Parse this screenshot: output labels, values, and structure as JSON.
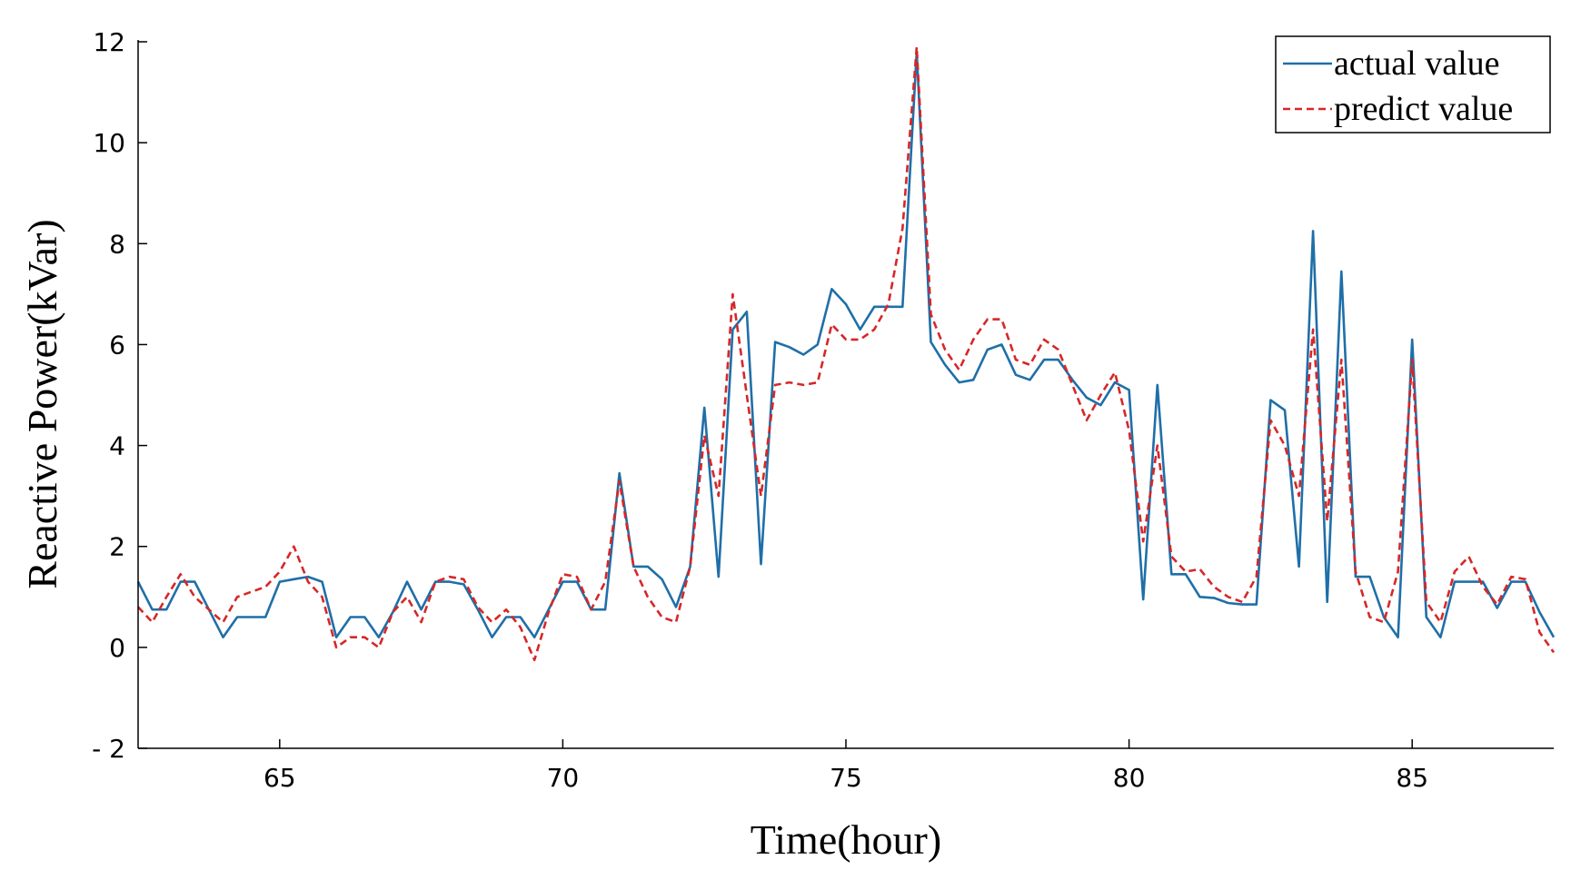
{
  "chart_data": {
    "type": "line",
    "xlabel": "Time(hour)",
    "ylabel": "Reactive Power(kVar)",
    "xlim": [
      62.5,
      87.5
    ],
    "ylim": [
      -2,
      12
    ],
    "xticks": [
      65,
      70,
      75,
      80,
      85
    ],
    "yticks": [
      -2,
      0,
      2,
      4,
      6,
      8,
      10,
      12
    ],
    "ytick_labels": [
      "- 2",
      "0",
      "2",
      "4",
      "6",
      "8",
      "10",
      "12"
    ],
    "legend_position": "top-right",
    "grid": false,
    "series": [
      {
        "name": "actual value",
        "color": "#1f6fa8",
        "style": "solid",
        "x": [
          62.5,
          62.75,
          63.0,
          63.25,
          63.5,
          63.75,
          64.0,
          64.25,
          64.5,
          64.75,
          65.0,
          65.25,
          65.5,
          65.75,
          66.0,
          66.25,
          66.5,
          66.75,
          67.0,
          67.25,
          67.5,
          67.75,
          68.0,
          68.25,
          68.5,
          68.75,
          69.0,
          69.25,
          69.5,
          69.75,
          70.0,
          70.25,
          70.5,
          70.75,
          71.0,
          71.25,
          71.5,
          71.75,
          72.0,
          72.25,
          72.5,
          72.75,
          73.0,
          73.25,
          73.5,
          73.75,
          74.0,
          74.25,
          74.5,
          74.75,
          75.0,
          75.25,
          75.5,
          75.75,
          76.0,
          76.25,
          76.5,
          76.75,
          77.0,
          77.25,
          77.5,
          77.75,
          78.0,
          78.25,
          78.5,
          78.75,
          79.0,
          79.25,
          79.5,
          79.75,
          80.0,
          80.25,
          80.5,
          80.75,
          81.0,
          81.25,
          81.5,
          81.75,
          82.0,
          82.25,
          82.5,
          82.75,
          83.0,
          83.25,
          83.5,
          83.75,
          84.0,
          84.25,
          84.5,
          84.75,
          85.0,
          85.25,
          85.5,
          85.75,
          86.0,
          86.25,
          86.5,
          86.75,
          87.0,
          87.25,
          87.5
        ],
        "y": [
          1.3,
          0.75,
          0.75,
          1.3,
          1.3,
          0.75,
          0.2,
          0.6,
          0.6,
          0.6,
          1.3,
          1.35,
          1.4,
          1.3,
          0.2,
          0.6,
          0.6,
          0.2,
          0.7,
          1.3,
          0.75,
          1.3,
          1.3,
          1.25,
          0.75,
          0.2,
          0.6,
          0.6,
          0.2,
          0.75,
          1.3,
          1.3,
          0.75,
          0.75,
          3.45,
          1.6,
          1.6,
          1.35,
          0.8,
          1.6,
          4.75,
          1.4,
          6.3,
          6.65,
          1.65,
          6.05,
          5.95,
          5.8,
          6.0,
          7.1,
          6.8,
          6.3,
          6.75,
          6.75,
          6.75,
          11.8,
          6.05,
          5.6,
          5.25,
          5.3,
          5.9,
          6.0,
          5.4,
          5.3,
          5.7,
          5.7,
          5.3,
          4.95,
          4.8,
          5.25,
          5.1,
          0.95,
          5.2,
          1.45,
          1.45,
          1.0,
          0.98,
          0.88,
          0.85,
          0.85,
          4.9,
          4.7,
          1.6,
          8.25,
          0.9,
          7.45,
          1.4,
          1.4,
          0.6,
          0.2,
          6.1,
          0.6,
          0.2,
          1.3,
          1.3,
          1.3,
          0.78,
          1.3,
          1.3,
          0.7,
          0.2
        ]
      },
      {
        "name": "predict value",
        "color": "#d62728",
        "style": "dashed",
        "x": [
          62.5,
          62.75,
          63.0,
          63.25,
          63.5,
          63.75,
          64.0,
          64.25,
          64.5,
          64.75,
          65.0,
          65.25,
          65.5,
          65.75,
          66.0,
          66.25,
          66.5,
          66.75,
          67.0,
          67.25,
          67.5,
          67.75,
          68.0,
          68.25,
          68.5,
          68.75,
          69.0,
          69.25,
          69.5,
          69.75,
          70.0,
          70.25,
          70.5,
          70.75,
          71.0,
          71.25,
          71.5,
          71.75,
          72.0,
          72.25,
          72.5,
          72.75,
          73.0,
          73.25,
          73.5,
          73.75,
          74.0,
          74.25,
          74.5,
          74.75,
          75.0,
          75.25,
          75.5,
          75.75,
          76.0,
          76.25,
          76.5,
          76.75,
          77.0,
          77.25,
          77.5,
          77.75,
          78.0,
          78.25,
          78.5,
          78.75,
          79.0,
          79.25,
          79.5,
          79.75,
          80.0,
          80.25,
          80.5,
          80.75,
          81.0,
          81.25,
          81.5,
          81.75,
          82.0,
          82.25,
          82.5,
          82.75,
          83.0,
          83.25,
          83.5,
          83.75,
          84.0,
          84.25,
          84.5,
          84.75,
          85.0,
          85.25,
          85.5,
          85.75,
          86.0,
          86.25,
          86.5,
          86.75,
          87.0,
          87.25,
          87.5
        ],
        "y": [
          0.8,
          0.5,
          1.0,
          1.45,
          1.0,
          0.75,
          0.5,
          1.0,
          1.1,
          1.2,
          1.5,
          2.0,
          1.3,
          1.0,
          0.0,
          0.2,
          0.2,
          0.0,
          0.7,
          1.0,
          0.5,
          1.3,
          1.4,
          1.35,
          0.8,
          0.5,
          0.75,
          0.4,
          -0.25,
          0.7,
          1.45,
          1.4,
          0.75,
          1.3,
          3.3,
          1.6,
          1.0,
          0.6,
          0.5,
          1.6,
          4.2,
          3.0,
          7.0,
          5.0,
          3.0,
          5.2,
          5.25,
          5.2,
          5.25,
          6.4,
          6.1,
          6.1,
          6.3,
          6.8,
          8.3,
          11.9,
          6.6,
          5.9,
          5.5,
          6.1,
          6.5,
          6.5,
          5.7,
          5.6,
          6.1,
          5.9,
          5.2,
          4.5,
          5.0,
          5.45,
          4.3,
          2.1,
          4.0,
          1.8,
          1.5,
          1.55,
          1.2,
          1.0,
          0.9,
          1.4,
          4.5,
          4.0,
          3.0,
          6.3,
          2.5,
          5.7,
          1.5,
          0.6,
          0.5,
          1.5,
          5.7,
          0.9,
          0.5,
          1.5,
          1.8,
          1.2,
          0.85,
          1.4,
          1.35,
          0.3,
          -0.1
        ]
      }
    ]
  }
}
